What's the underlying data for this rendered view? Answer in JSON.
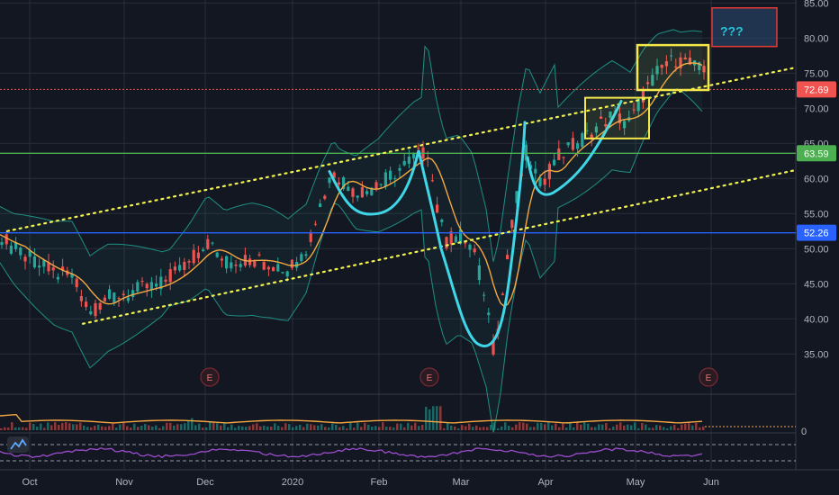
{
  "chart_data": {
    "type": "candlestick",
    "y_axis": {
      "ticks": [
        85,
        80,
        75,
        70,
        65,
        60,
        55,
        50,
        45,
        40,
        35
      ],
      "range": [
        33,
        86
      ],
      "side": "right",
      "grid": true
    },
    "x_axis": {
      "ticks": [
        "Oct",
        "Nov",
        "Dec",
        "2020",
        "Feb",
        "Mar",
        "Apr",
        "May",
        "Jun"
      ]
    },
    "price_tags": [
      {
        "label": "72.69",
        "value": 72.69,
        "color": "#f05350",
        "line": "dotted"
      },
      {
        "label": "63.59",
        "value": 63.59,
        "color": "#4caf50",
        "line": "solid"
      },
      {
        "label": "52.26",
        "value": 52.26,
        "color": "#2962ff",
        "line": "solid"
      }
    ],
    "earnings_markers": [
      "E",
      "E",
      "E"
    ],
    "annotation": {
      "text": "???",
      "color": "#26c6da",
      "box_color": "#e53935"
    },
    "volume_axis_label": "0",
    "colors": {
      "up": "#26a69a",
      "down": "#ef5350",
      "ma": "#f5a742",
      "band": "#1f8f84",
      "channel": "#f4f44e",
      "pattern": "#3fd6e8",
      "box": "#f4e84b",
      "rsi": "#9c4dcc"
    }
  }
}
